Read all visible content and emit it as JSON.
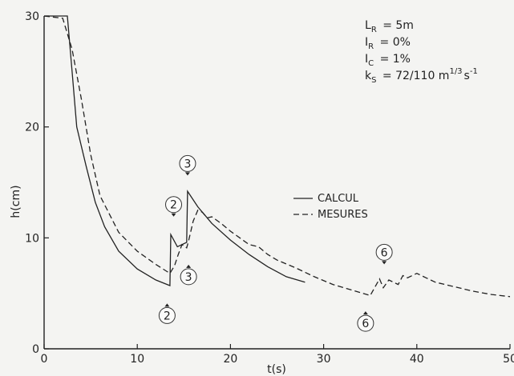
{
  "chart_data": {
    "type": "line",
    "xlabel": "t(s)",
    "ylabel": "h(cm)",
    "xlim": [
      0,
      50
    ],
    "ylim": [
      0,
      30
    ],
    "x_ticks": [
      "0",
      "10",
      "20",
      "30",
      "40",
      "50"
    ],
    "y_ticks": [
      "0",
      "10",
      "20",
      "30"
    ],
    "parameters": [
      {
        "symbol": "L",
        "sub": "R",
        "value": "= 5m"
      },
      {
        "symbol": "I",
        "sub": "R",
        "value": "= 0%"
      },
      {
        "symbol": "I",
        "sub": "C",
        "value": "= 1%"
      },
      {
        "symbol": "k",
        "sub": "S",
        "value": "= 72/110 m",
        "exp1": "1/3",
        "mid": "s",
        "exp2": "-1"
      }
    ],
    "legend": {
      "position": "right-middle"
    },
    "series": [
      {
        "name": "CALCUL",
        "style": "solid",
        "x": [
          0,
          2.5,
          3.0,
          3.5,
          4.5,
          5.5,
          6.5,
          8,
          10,
          12,
          13.5,
          13.6,
          14.3,
          15.3,
          15.4,
          16.5,
          18,
          20,
          22,
          24,
          26,
          28
        ],
        "y": [
          30,
          30,
          25,
          20,
          16.5,
          13.2,
          11,
          8.8,
          7.2,
          6.2,
          5.7,
          10.3,
          9.2,
          9.6,
          14.2,
          12.8,
          11.3,
          9.8,
          8.5,
          7.4,
          6.5,
          6.0
        ]
      },
      {
        "name": "MESURES",
        "style": "dashed",
        "x": [
          0,
          2,
          3,
          4,
          5,
          6,
          8,
          10,
          12,
          13.5,
          14.0,
          14.4,
          14.8,
          15.3,
          15.5,
          16,
          16.5,
          17,
          17.5,
          18,
          19,
          20,
          21,
          22,
          23,
          24,
          25,
          27,
          29,
          31,
          33,
          35,
          36,
          36.4,
          37,
          38,
          38.5,
          39,
          40,
          41,
          42,
          44,
          46,
          48,
          50
        ],
        "y": [
          30,
          29.8,
          27,
          22.5,
          17.5,
          13.8,
          10.5,
          8.8,
          7.6,
          6.8,
          7.5,
          8.5,
          9.4,
          9.1,
          9.7,
          11.5,
          12.5,
          12.3,
          11.8,
          11.9,
          11.3,
          10.6,
          10.0,
          9.4,
          9.2,
          8.5,
          8.0,
          7.3,
          6.5,
          5.8,
          5.3,
          4.8,
          6.3,
          5.5,
          6.2,
          5.8,
          6.6,
          6.4,
          6.8,
          6.4,
          6.0,
          5.6,
          5.2,
          4.9,
          4.7
        ]
      }
    ],
    "annotations": [
      {
        "label": "2",
        "x": 13.9,
        "y": 13.0,
        "arrow": "down"
      },
      {
        "label": "2",
        "x": 13.2,
        "y": 3.0,
        "arrow": "up"
      },
      {
        "label": "3",
        "x": 15.4,
        "y": 16.7,
        "arrow": "down"
      },
      {
        "label": "3",
        "x": 15.5,
        "y": 6.5,
        "arrow": "up"
      },
      {
        "label": "6",
        "x": 36.5,
        "y": 8.7,
        "arrow": "down"
      },
      {
        "label": "6",
        "x": 34.5,
        "y": 2.3,
        "arrow": "up"
      }
    ]
  }
}
